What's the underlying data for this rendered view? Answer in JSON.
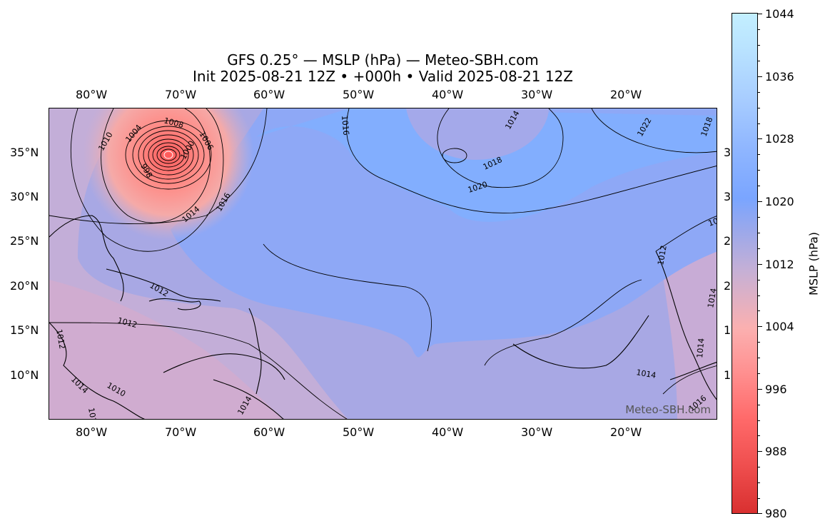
{
  "title": {
    "line1": "GFS 0.25° — MSLP (hPa) — Meteo-SBH.com",
    "line2": "Init 2025-08-21 12Z • +000h • Valid 2025-08-21 12Z"
  },
  "axes": {
    "lon_ticks": [
      "80°W",
      "70°W",
      "60°W",
      "50°W",
      "40°W",
      "30°W",
      "20°W"
    ],
    "lat_ticks": [
      "35°N",
      "30°N",
      "25°N",
      "20°N",
      "15°N",
      "10°N"
    ],
    "right_edge_digits": [
      "3",
      "3",
      "2",
      "2",
      "1",
      "1"
    ]
  },
  "map": {
    "watermark": "Meteo-SBH.com",
    "contour_labels": [
      "1012",
      "1014",
      "1016",
      "1018",
      "1020",
      "1022",
      "1018",
      "1016",
      "1014",
      "1012",
      "1010",
      "1008",
      "1006",
      "1004",
      "1000",
      "998",
      "1014",
      "1012",
      "1014",
      "1010",
      "1012",
      "1012",
      "1014",
      "1016",
      "1018",
      "1014",
      "1014"
    ]
  },
  "colorbar": {
    "label": "MSLP (hPa)",
    "ticks": [
      "1044",
      "1036",
      "1028",
      "1020",
      "1012",
      "1004",
      "996",
      "988",
      "980"
    ],
    "colors": {
      "low": "#d93030",
      "mid_low": "#fbb0b0",
      "mid": "#99a8ec",
      "high": "#7aa5ff",
      "top": "#c3efff"
    }
  }
}
